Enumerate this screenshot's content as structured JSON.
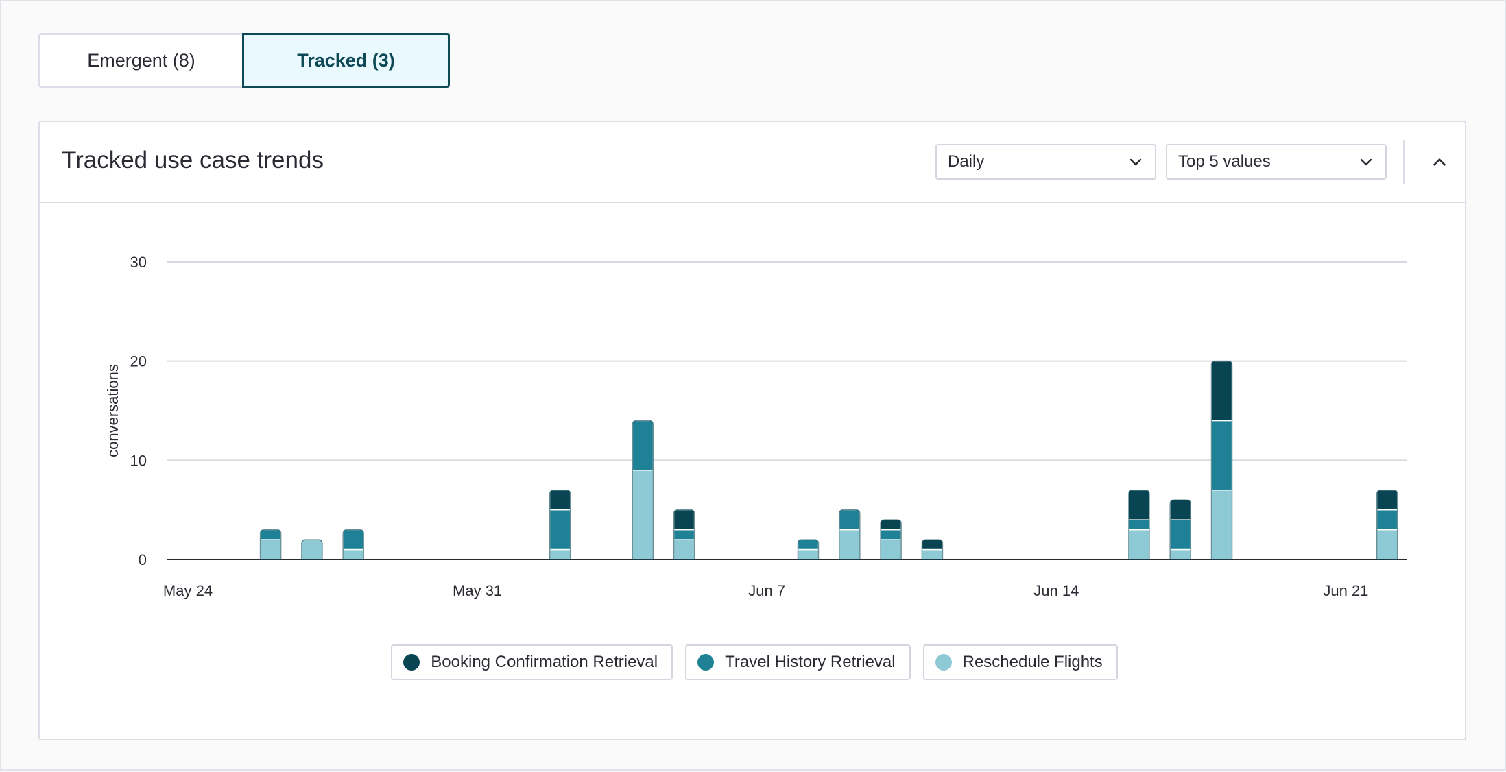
{
  "tabs": [
    {
      "label": "Emergent (8)"
    },
    {
      "label": "Tracked (3)"
    }
  ],
  "card": {
    "title": "Tracked use case trends",
    "granularity_select": "Daily",
    "values_select": "Top 5 values"
  },
  "colors": {
    "booking": "#084452",
    "travel": "#1f8196",
    "reschedule": "#8ec9d6"
  },
  "chart_data": {
    "type": "bar",
    "stacked": true,
    "ylabel": "conversations",
    "xlabel": "",
    "ylim": [
      0,
      30
    ],
    "yticks": [
      0,
      10,
      20,
      30
    ],
    "grid": true,
    "legend_position": "bottom",
    "start_date": "May 24",
    "x_tick_labels": [
      "May 24",
      "May 31",
      "Jun 7",
      "Jun 14",
      "Jun 21"
    ],
    "categories": [
      "May 24",
      "May 25",
      "May 26",
      "May 27",
      "May 28",
      "May 29",
      "May 30",
      "May 31",
      "Jun 1",
      "Jun 2",
      "Jun 3",
      "Jun 4",
      "Jun 5",
      "Jun 6",
      "Jun 7",
      "Jun 8",
      "Jun 9",
      "Jun 10",
      "Jun 11",
      "Jun 12",
      "Jun 13",
      "Jun 14",
      "Jun 15",
      "Jun 16",
      "Jun 17",
      "Jun 18",
      "Jun 19",
      "Jun 20",
      "Jun 21",
      "Jun 22"
    ],
    "series": [
      {
        "name": "Reschedule Flights",
        "values": [
          0,
          0,
          2,
          2,
          1,
          0,
          0,
          0,
          0,
          1,
          0,
          9,
          2,
          0,
          0,
          1,
          3,
          2,
          1,
          0,
          0,
          0,
          0,
          3,
          1,
          7,
          0,
          0,
          0,
          3
        ]
      },
      {
        "name": "Travel History Retrieval",
        "values": [
          0,
          0,
          1,
          0,
          2,
          0,
          0,
          0,
          0,
          4,
          0,
          5,
          1,
          0,
          0,
          1,
          2,
          1,
          0,
          0,
          0,
          0,
          0,
          1,
          3,
          7,
          0,
          0,
          0,
          2
        ]
      },
      {
        "name": "Booking Confirmation Retrieval",
        "values": [
          0,
          0,
          0,
          0,
          0,
          0,
          0,
          0,
          0,
          2,
          0,
          0,
          2,
          0,
          0,
          0,
          0,
          1,
          1,
          0,
          0,
          0,
          0,
          3,
          2,
          6,
          0,
          0,
          0,
          2
        ]
      }
    ]
  },
  "legend": [
    {
      "label": "Booking Confirmation Retrieval",
      "color_key": "booking"
    },
    {
      "label": "Travel History Retrieval",
      "color_key": "travel"
    },
    {
      "label": "Reschedule Flights",
      "color_key": "reschedule"
    }
  ]
}
